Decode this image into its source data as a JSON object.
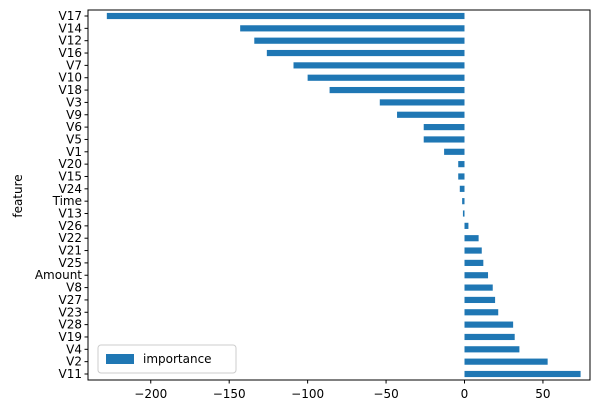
{
  "chart_data": {
    "type": "bar",
    "orientation": "horizontal",
    "title": "",
    "xlabel": "",
    "ylabel": "feature",
    "xlim": [
      -240,
      80
    ],
    "xticks": [
      -200,
      -150,
      -100,
      -50,
      0,
      50
    ],
    "grid": false,
    "legend_position": "lower-left",
    "series": [
      {
        "name": "importance",
        "color": "#1f77b4",
        "categories": [
          "V17",
          "V14",
          "V12",
          "V16",
          "V7",
          "V10",
          "V18",
          "V3",
          "V9",
          "V6",
          "V5",
          "V1",
          "V20",
          "V15",
          "V24",
          "Time",
          "V13",
          "V26",
          "V22",
          "V21",
          "V25",
          "Amount",
          "V8",
          "V27",
          "V23",
          "V28",
          "V19",
          "V4",
          "V2",
          "V11"
        ],
        "values": [
          -228,
          -143,
          -134,
          -126,
          -109,
          -100,
          -86,
          -54,
          -43,
          -26,
          -26,
          -13,
          -4,
          -4,
          -3,
          -1.5,
          -1,
          2.5,
          9,
          11,
          12,
          15,
          18,
          19.5,
          21.5,
          31,
          32,
          35,
          53,
          74
        ]
      }
    ]
  }
}
